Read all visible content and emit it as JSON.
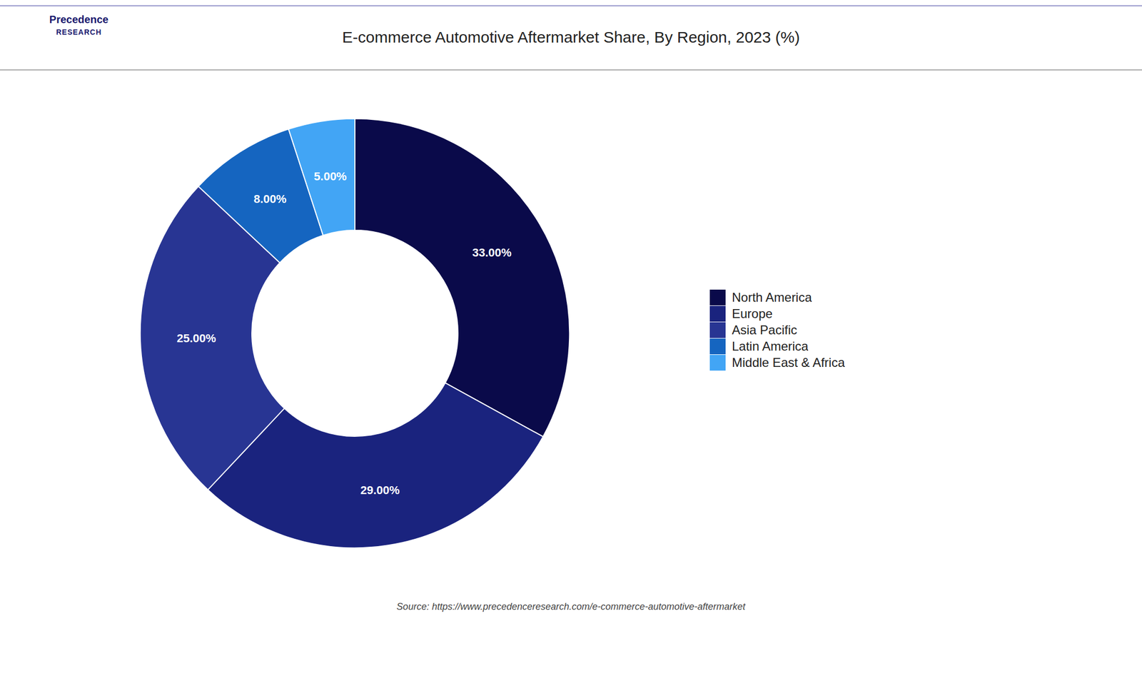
{
  "chart_data": {
    "type": "pie",
    "title": "E-commerce Automotive Aftermarket Share, By Region, 2023 (%)",
    "categories": [
      "North America",
      "Europe",
      "Asia Pacific",
      "Latin America",
      "Middle East & Africa"
    ],
    "values": [
      33.0,
      29.0,
      25.0,
      8.0,
      5.0
    ],
    "value_labels": [
      "33.00%",
      "29.00%",
      "25.00%",
      "8.00%",
      "5.00%"
    ],
    "colors": [
      "#0a0a4a",
      "#1a237e",
      "#283593",
      "#1565c0",
      "#42a5f5"
    ],
    "data_labels": true,
    "legend": "right",
    "annotations": [
      "Precedence",
      "RESEARCH"
    ],
    "caption": "Source: https://www.precedenceresearch.com/e-commerce-automotive-aftermarket"
  }
}
